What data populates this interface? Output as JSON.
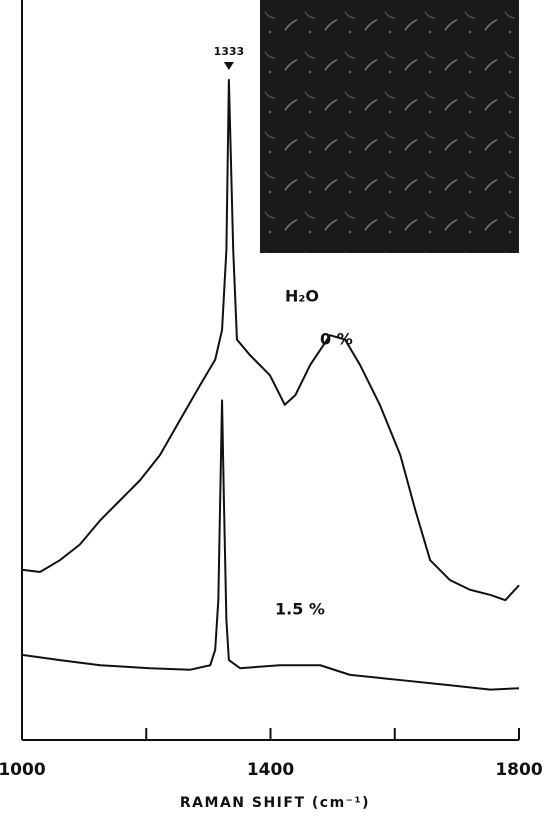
{
  "chart_data": {
    "type": "line",
    "x_label": "RAMAN SHIFT (cm⁻¹)",
    "legend_title": "H₂O",
    "peak_marker": 1333,
    "xlim": [
      1000,
      1800
    ],
    "xticks": [
      1000,
      1400,
      1800
    ],
    "minor_xticks": [
      1200,
      1600
    ],
    "ylim": [
      0,
      100
    ],
    "series": [
      {
        "name": "0 %",
        "color": "#111111",
        "x": [
          1000,
          1029,
          1061,
          1093,
          1126,
          1158,
          1190,
          1222,
          1254,
          1287,
          1311,
          1322,
          1329,
          1333,
          1340,
          1346,
          1367,
          1399,
          1423,
          1440,
          1464,
          1496,
          1520,
          1544,
          1576,
          1609,
          1633,
          1657,
          1689,
          1721,
          1754,
          1778,
          1800
        ],
        "values": [
          23.0,
          22.7,
          24.3,
          26.4,
          29.7,
          32.4,
          35.1,
          38.5,
          43.2,
          48.0,
          51.4,
          55.4,
          66.2,
          89.2,
          66.2,
          54.1,
          52.0,
          49.3,
          45.3,
          46.6,
          50.7,
          54.7,
          54.1,
          50.7,
          45.3,
          38.5,
          31.1,
          24.3,
          21.6,
          20.3,
          19.6,
          18.9,
          20.9
        ]
      },
      {
        "name": "1.5 %",
        "color": "#111111",
        "x": [
          1000,
          1061,
          1126,
          1206,
          1271,
          1303,
          1311,
          1316,
          1319,
          1322,
          1325,
          1329,
          1333,
          1351,
          1415,
          1480,
          1528,
          1609,
          1689,
          1754,
          1800
        ],
        "values": [
          11.5,
          10.8,
          10.1,
          9.7,
          9.5,
          10.1,
          12.2,
          18.9,
          32.4,
          45.9,
          32.4,
          16.2,
          10.8,
          9.7,
          10.1,
          10.1,
          8.8,
          8.1,
          7.4,
          6.8,
          7.0
        ]
      }
    ]
  }
}
